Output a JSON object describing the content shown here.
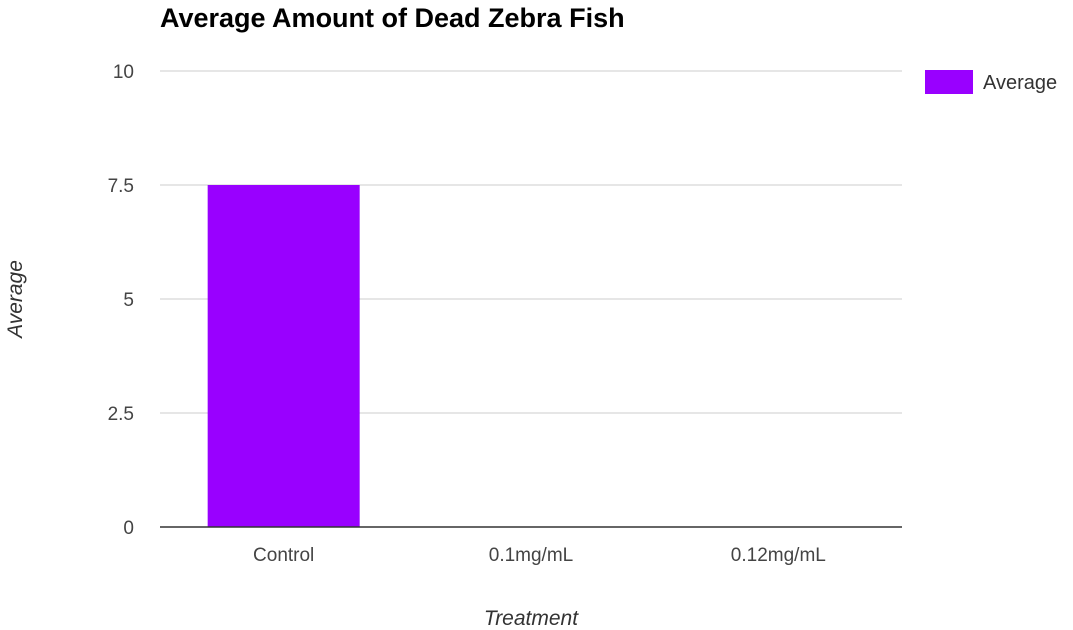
{
  "chart_data": {
    "type": "bar",
    "title": "Average Amount of Dead Zebra Fish",
    "xlabel": "Treatment",
    "ylabel": "Average",
    "categories": [
      "Control",
      "0.1mg/mL",
      "0.12mg/mL"
    ],
    "series": [
      {
        "name": "Average",
        "values": [
          7.5,
          0,
          0
        ],
        "color": "#9900ff"
      }
    ],
    "ylim": [
      0,
      10
    ],
    "yticks": [
      "0",
      "2.5",
      "5",
      "7.5",
      "10"
    ],
    "grid": true,
    "legend_position": "right"
  }
}
